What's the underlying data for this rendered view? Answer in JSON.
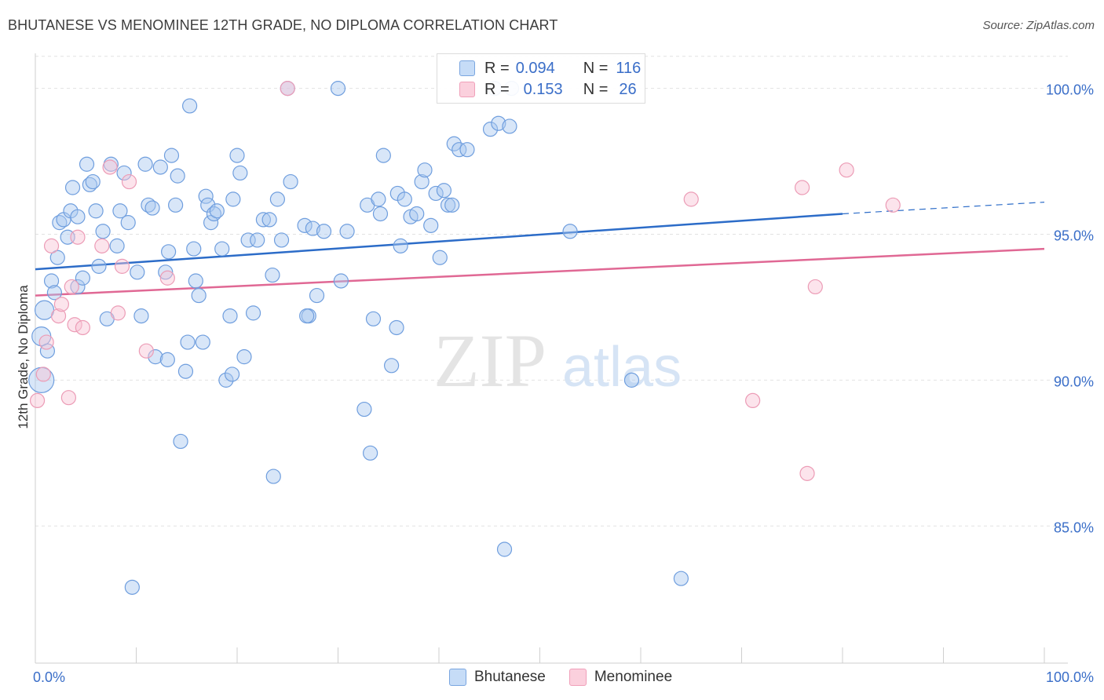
{
  "title": "BHUTANESE VS MENOMINEE 12TH GRADE, NO DIPLOMA CORRELATION CHART",
  "source": "Source: ZipAtlas.com",
  "watermark": {
    "zip": "ZIP",
    "atlas": "atlas"
  },
  "legend": {
    "r_label": "R =",
    "n_label": "N =",
    "rows": [
      {
        "name": "Bhutanese",
        "r": "0.094",
        "n": "116"
      },
      {
        "name": "Menominee",
        "r": "0.153",
        "n": "26"
      }
    ]
  },
  "chart_data": {
    "type": "scatter",
    "title": "BHUTANESE VS MENOMINEE 12TH GRADE, NO DIPLOMA CORRELATION CHART",
    "xlabel": "",
    "ylabel": "12th Grade, No Diploma",
    "xlim": [
      0,
      100
    ],
    "ylim": [
      80.3,
      101.2
    ],
    "x_tick_labels": [
      "0.0%",
      "100.0%"
    ],
    "y_ticks": [
      85,
      90,
      95,
      100
    ],
    "y_tick_labels": [
      "85.0%",
      "90.0%",
      "95.0%",
      "100.0%"
    ],
    "grid": true,
    "legend_position": "top-center",
    "colors": {
      "Bhutanese": "#7aa6e0",
      "Menominee": "#f0a0ba",
      "Bhutanese_line": "#2c6cc8",
      "Menominee_line": "#e06894",
      "tick_label": "#3a6ec8"
    },
    "series": [
      {
        "name": "Bhutanese",
        "trend": {
          "x": [
            0,
            80
          ],
          "y": [
            93.8,
            95.7
          ],
          "dashed_to": [
            100,
            96.1
          ]
        },
        "points": [
          [
            0.6,
            90.0
          ],
          [
            0.6,
            91.5
          ],
          [
            0.9,
            92.4
          ],
          [
            1.2,
            91.0
          ],
          [
            1.6,
            93.4
          ],
          [
            1.9,
            93.0
          ],
          [
            2.2,
            94.2
          ],
          [
            2.4,
            95.4
          ],
          [
            2.8,
            95.5
          ],
          [
            3.2,
            94.9
          ],
          [
            3.5,
            95.8
          ],
          [
            3.7,
            96.6
          ],
          [
            4.2,
            95.6
          ],
          [
            4.2,
            93.2
          ],
          [
            4.7,
            93.5
          ],
          [
            5.1,
            97.4
          ],
          [
            5.4,
            96.7
          ],
          [
            5.7,
            96.8
          ],
          [
            6.0,
            95.8
          ],
          [
            6.3,
            93.9
          ],
          [
            6.7,
            95.1
          ],
          [
            7.1,
            92.1
          ],
          [
            7.5,
            97.4
          ],
          [
            8.1,
            94.6
          ],
          [
            8.4,
            95.8
          ],
          [
            8.8,
            97.1
          ],
          [
            9.2,
            95.4
          ],
          [
            9.6,
            82.9
          ],
          [
            10.1,
            93.7
          ],
          [
            10.5,
            92.2
          ],
          [
            10.9,
            97.4
          ],
          [
            11.2,
            96.0
          ],
          [
            11.6,
            95.9
          ],
          [
            11.9,
            90.8
          ],
          [
            12.4,
            97.3
          ],
          [
            12.9,
            93.7
          ],
          [
            13.1,
            90.7
          ],
          [
            13.2,
            94.4
          ],
          [
            13.5,
            97.7
          ],
          [
            13.9,
            96.0
          ],
          [
            14.1,
            97.0
          ],
          [
            14.4,
            87.9
          ],
          [
            14.9,
            90.3
          ],
          [
            15.1,
            91.3
          ],
          [
            15.3,
            99.4
          ],
          [
            15.7,
            94.5
          ],
          [
            15.9,
            93.4
          ],
          [
            16.2,
            92.9
          ],
          [
            16.6,
            91.3
          ],
          [
            16.9,
            96.3
          ],
          [
            17.1,
            96.0
          ],
          [
            17.4,
            95.4
          ],
          [
            17.7,
            95.7
          ],
          [
            18.0,
            95.8
          ],
          [
            18.5,
            94.5
          ],
          [
            18.9,
            90.0
          ],
          [
            19.3,
            92.2
          ],
          [
            19.5,
            90.2
          ],
          [
            19.6,
            96.2
          ],
          [
            20.0,
            97.7
          ],
          [
            20.3,
            97.1
          ],
          [
            20.7,
            90.8
          ],
          [
            21.1,
            94.8
          ],
          [
            21.6,
            92.3
          ],
          [
            22.0,
            94.8
          ],
          [
            22.6,
            95.5
          ],
          [
            23.2,
            95.5
          ],
          [
            23.5,
            93.6
          ],
          [
            23.6,
            86.7
          ],
          [
            24.0,
            96.2
          ],
          [
            24.4,
            94.8
          ],
          [
            25.0,
            100.0
          ],
          [
            25.3,
            96.8
          ],
          [
            26.7,
            95.3
          ],
          [
            27.1,
            92.2
          ],
          [
            27.5,
            95.2
          ],
          [
            27.9,
            92.9
          ],
          [
            28.6,
            95.1
          ],
          [
            30.0,
            100.0
          ],
          [
            30.3,
            93.4
          ],
          [
            30.9,
            95.1
          ],
          [
            32.6,
            89.0
          ],
          [
            32.9,
            96.0
          ],
          [
            33.2,
            87.5
          ],
          [
            33.5,
            92.1
          ],
          [
            34.0,
            96.2
          ],
          [
            34.2,
            95.7
          ],
          [
            34.5,
            97.7
          ],
          [
            35.3,
            90.5
          ],
          [
            35.9,
            96.4
          ],
          [
            36.2,
            94.6
          ],
          [
            36.6,
            96.2
          ],
          [
            37.2,
            95.6
          ],
          [
            37.8,
            95.7
          ],
          [
            38.3,
            96.8
          ],
          [
            38.6,
            97.2
          ],
          [
            39.2,
            95.3
          ],
          [
            39.7,
            96.4
          ],
          [
            40.1,
            94.2
          ],
          [
            40.5,
            96.5
          ],
          [
            40.9,
            96.0
          ],
          [
            41.3,
            96.0
          ],
          [
            41.5,
            98.1
          ],
          [
            42.0,
            97.9
          ],
          [
            42.8,
            97.9
          ],
          [
            45.1,
            98.6
          ],
          [
            45.5,
            100.0
          ],
          [
            45.9,
            98.8
          ],
          [
            46.5,
            84.2
          ],
          [
            47.0,
            98.7
          ],
          [
            47.2,
            100.0
          ],
          [
            53.0,
            95.1
          ],
          [
            59.1,
            90.0
          ],
          [
            64.0,
            83.2
          ],
          [
            35.8,
            91.8
          ],
          [
            26.9,
            92.2
          ]
        ]
      },
      {
        "name": "Menominee",
        "trend": {
          "x": [
            0,
            100
          ],
          "y": [
            92.9,
            94.5
          ]
        },
        "points": [
          [
            0.2,
            89.3
          ],
          [
            0.8,
            90.2
          ],
          [
            1.1,
            91.3
          ],
          [
            1.6,
            94.6
          ],
          [
            2.3,
            92.2
          ],
          [
            2.6,
            92.6
          ],
          [
            3.3,
            89.4
          ],
          [
            3.6,
            93.2
          ],
          [
            3.9,
            91.9
          ],
          [
            4.2,
            94.9
          ],
          [
            4.7,
            91.8
          ],
          [
            6.6,
            94.6
          ],
          [
            7.4,
            97.3
          ],
          [
            8.2,
            92.3
          ],
          [
            8.6,
            93.9
          ],
          [
            9.3,
            96.8
          ],
          [
            11.0,
            91.0
          ],
          [
            13.1,
            93.5
          ],
          [
            25.0,
            100.0
          ],
          [
            65.0,
            96.2
          ],
          [
            71.1,
            89.3
          ],
          [
            76.0,
            96.6
          ],
          [
            76.5,
            86.8
          ],
          [
            77.3,
            93.2
          ],
          [
            80.4,
            97.2
          ],
          [
            85.0,
            96.0
          ]
        ]
      }
    ]
  }
}
